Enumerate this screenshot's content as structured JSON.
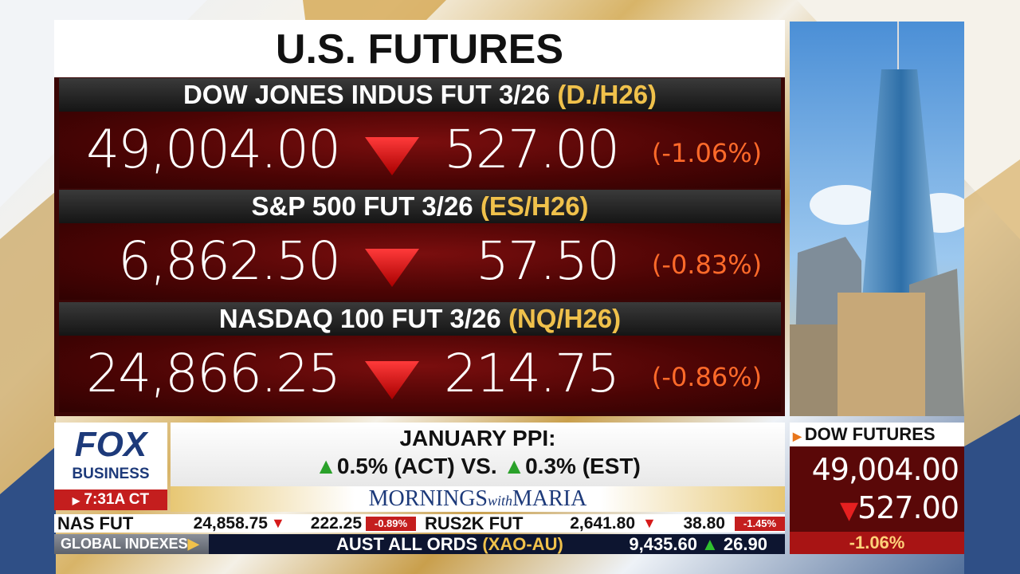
{
  "header": {
    "title": "U.S. FUTURES"
  },
  "futures": [
    {
      "name": "DOW JONES INDUS FUT 3/26",
      "symbol": "(D./H26)",
      "price": "49,004.00",
      "change": "527.00",
      "percent": "(-1.06%)"
    },
    {
      "name": "S&P 500 FUT 3/26",
      "symbol": "(ES/H26)",
      "price": "6,862.50",
      "change": "57.50",
      "percent": "(-0.83%)"
    },
    {
      "name": "NASDAQ 100 FUT 3/26",
      "symbol": "(NQ/H26)",
      "price": "24,866.25",
      "change": "214.75",
      "percent": "(-0.86%)"
    }
  ],
  "logo": {
    "line1": "FOX",
    "line2": "BUSINESS",
    "time": "7:31A CT"
  },
  "headline": {
    "title": "JANUARY PPI:",
    "actual": "0.5% (ACT) VS.",
    "estimate": "0.3% (EST)"
  },
  "show": {
    "first": "MORNINGS",
    "middle": "with",
    "last": "MARIA"
  },
  "side": {
    "title": "DOW FUTURES",
    "price": "49,004.00",
    "change": "527.00",
    "percent": "-1.06%"
  },
  "ticker": {
    "row1": [
      {
        "name": "NAS FUT",
        "price": "24,858.75",
        "change": "222.25",
        "percent": "-0.89%"
      },
      {
        "name": "RUS2K FUT",
        "price": "2,641.80",
        "change": "38.80",
        "percent": "-1.45%"
      }
    ],
    "row2": {
      "label": "GLOBAL INDEXES",
      "name": "AUST ALL ORDS",
      "symbol": "(XAO-AU)",
      "price": "9,435.60",
      "change": "26.90"
    }
  }
}
